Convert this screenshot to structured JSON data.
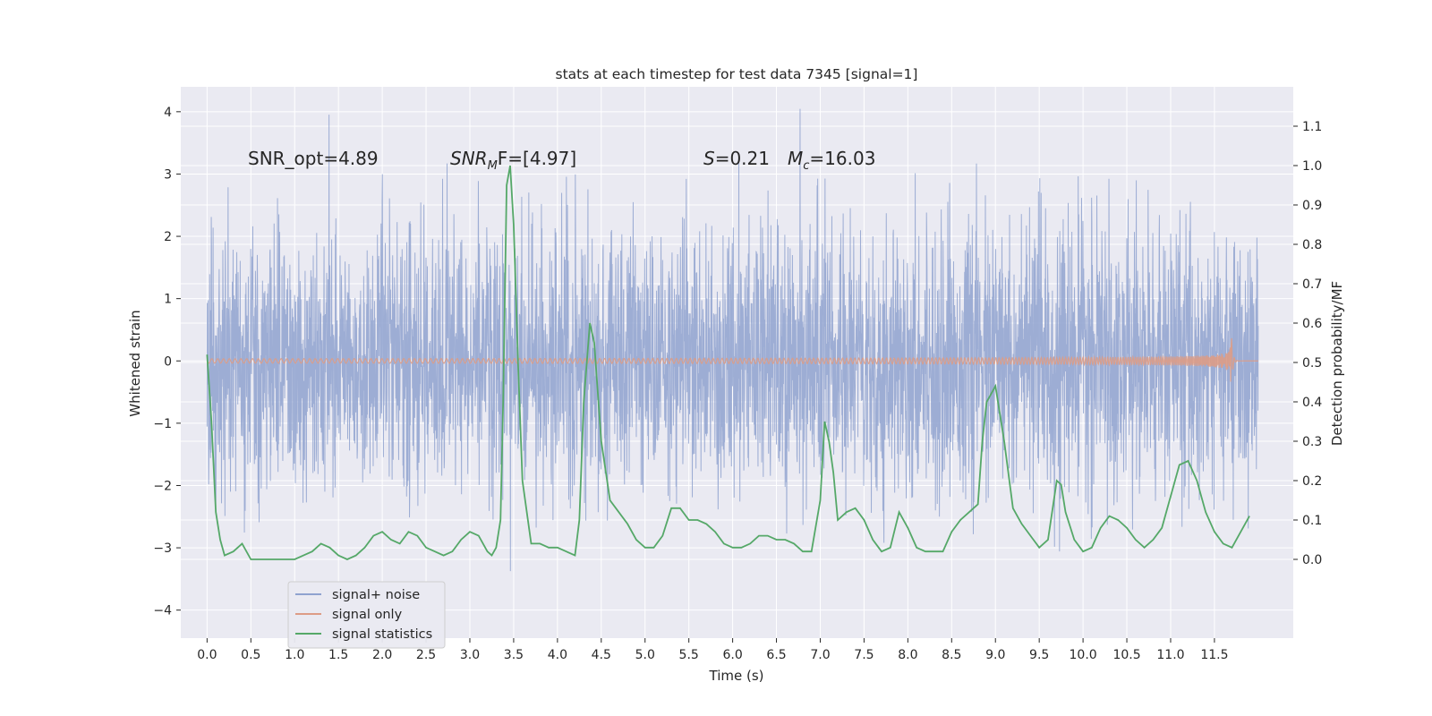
{
  "chart_data": {
    "type": "line",
    "title": "stats at each timestep for test data 7345 [signal=1]",
    "xlabel": "Time (s)",
    "ylabel": "Whitened strain",
    "y2label": "Detection probability/MF",
    "xlim": [
      -0.3,
      12.4
    ],
    "ylim": [
      -4.45,
      4.4
    ],
    "y2lim": [
      -0.2,
      1.2
    ],
    "x_ticks": [
      "0.0",
      "0.5",
      "1.0",
      "1.5",
      "2.0",
      "2.5",
      "3.0",
      "3.5",
      "4.0",
      "4.5",
      "5.0",
      "5.5",
      "6.0",
      "6.5",
      "7.0",
      "7.5",
      "8.0",
      "8.5",
      "9.0",
      "9.5",
      "10.0",
      "10.5",
      "11.0",
      "11.5"
    ],
    "y_ticks": [
      "4",
      "3",
      "2",
      "1",
      "0",
      "−1",
      "−2",
      "−3",
      "−4"
    ],
    "y2_ticks": [
      "1.1",
      "1.0",
      "0.9",
      "0.8",
      "0.7",
      "0.6",
      "0.5",
      "0.4",
      "0.3",
      "0.2",
      "0.1",
      "0.0"
    ],
    "grid": true,
    "legend_position": "lower-left",
    "annotations": {
      "snr_opt": "SNR_opt=4.89",
      "snr_mf_main": "SNR",
      "snr_mf_sub": "M",
      "snr_mf_rest": "F=[4.97]",
      "s_main": "S",
      "s_rest": "=0.21",
      "mc_main": "M",
      "mc_sub": "c",
      "mc_rest": "=16.03"
    },
    "series": [
      {
        "name": "signal+ noise",
        "color": "#8fa2cf",
        "axis": "left",
        "description_range": [
          -4.1,
          4.05
        ],
        "x_range": [
          0.0,
          12.0
        ]
      },
      {
        "name": "signal only",
        "color": "#dd9c86",
        "axis": "left",
        "chirp_peak_time": 11.68,
        "chirp_peak_amplitude": 1.1
      },
      {
        "name": "signal statistics",
        "color": "#55a868",
        "axis": "right",
        "x": [
          0.0,
          0.05,
          0.1,
          0.15,
          0.2,
          0.3,
          0.4,
          0.5,
          0.6,
          0.8,
          1.0,
          1.1,
          1.2,
          1.3,
          1.4,
          1.5,
          1.6,
          1.7,
          1.8,
          1.9,
          2.0,
          2.1,
          2.2,
          2.3,
          2.4,
          2.5,
          2.6,
          2.7,
          2.8,
          2.9,
          3.0,
          3.1,
          3.2,
          3.25,
          3.3,
          3.35,
          3.38,
          3.42,
          3.46,
          3.5,
          3.55,
          3.6,
          3.7,
          3.8,
          3.9,
          4.0,
          4.1,
          4.2,
          4.25,
          4.3,
          4.37,
          4.42,
          4.5,
          4.6,
          4.7,
          4.8,
          4.9,
          5.0,
          5.1,
          5.2,
          5.3,
          5.4,
          5.5,
          5.6,
          5.7,
          5.8,
          5.9,
          6.0,
          6.1,
          6.2,
          6.3,
          6.4,
          6.5,
          6.6,
          6.7,
          6.8,
          6.9,
          7.0,
          7.05,
          7.1,
          7.15,
          7.2,
          7.3,
          7.4,
          7.5,
          7.6,
          7.7,
          7.8,
          7.9,
          8.0,
          8.1,
          8.2,
          8.3,
          8.4,
          8.5,
          8.6,
          8.7,
          8.8,
          8.85,
          8.9,
          9.0,
          9.1,
          9.2,
          9.3,
          9.4,
          9.5,
          9.6,
          9.7,
          9.75,
          9.8,
          9.9,
          10.0,
          10.1,
          10.2,
          10.3,
          10.4,
          10.5,
          10.6,
          10.7,
          10.8,
          10.9,
          11.0,
          11.1,
          11.2,
          11.3,
          11.4,
          11.5,
          11.6,
          11.7,
          11.8,
          11.9
        ],
        "y": [
          0.52,
          0.35,
          0.12,
          0.05,
          0.01,
          0.02,
          0.04,
          0.0,
          0.0,
          0.0,
          0.0,
          0.01,
          0.02,
          0.04,
          0.03,
          0.01,
          0.0,
          0.01,
          0.03,
          0.06,
          0.07,
          0.05,
          0.04,
          0.07,
          0.06,
          0.03,
          0.02,
          0.01,
          0.02,
          0.05,
          0.07,
          0.06,
          0.02,
          0.01,
          0.03,
          0.1,
          0.4,
          0.95,
          1.0,
          0.85,
          0.5,
          0.2,
          0.04,
          0.04,
          0.03,
          0.03,
          0.02,
          0.01,
          0.1,
          0.4,
          0.6,
          0.55,
          0.3,
          0.15,
          0.12,
          0.09,
          0.05,
          0.03,
          0.03,
          0.06,
          0.13,
          0.13,
          0.1,
          0.1,
          0.09,
          0.07,
          0.04,
          0.03,
          0.03,
          0.04,
          0.06,
          0.06,
          0.05,
          0.05,
          0.04,
          0.02,
          0.02,
          0.15,
          0.35,
          0.3,
          0.22,
          0.1,
          0.12,
          0.13,
          0.1,
          0.05,
          0.02,
          0.03,
          0.12,
          0.08,
          0.03,
          0.02,
          0.02,
          0.02,
          0.07,
          0.1,
          0.12,
          0.14,
          0.3,
          0.4,
          0.44,
          0.3,
          0.13,
          0.09,
          0.06,
          0.03,
          0.05,
          0.2,
          0.19,
          0.12,
          0.05,
          0.02,
          0.03,
          0.08,
          0.11,
          0.1,
          0.08,
          0.05,
          0.03,
          0.05,
          0.08,
          0.16,
          0.24,
          0.25,
          0.2,
          0.12,
          0.07,
          0.04,
          0.03,
          0.07,
          0.11
        ]
      }
    ]
  }
}
